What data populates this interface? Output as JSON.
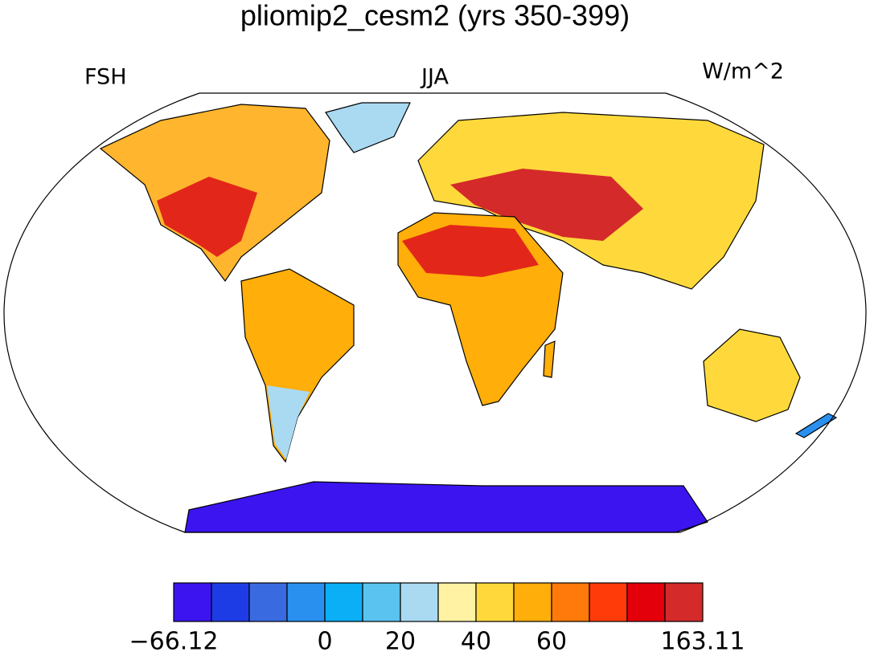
{
  "header": {
    "title": "pliomip2_cesm2 (yrs 350-399)",
    "left": "FSH",
    "center": "JJA",
    "right": "W/m^2"
  },
  "colorbar": {
    "colors": [
      "#3c14f0",
      "#1e3ce6",
      "#3a6ae0",
      "#2a90f0",
      "#0aaff5",
      "#5ac3f0",
      "#a9daf2",
      "#fff3a3",
      "#ffd93b",
      "#ffae0a",
      "#ff7a0a",
      "#ff3b0a",
      "#e3000a",
      "#d42a2a"
    ],
    "labels": [
      {
        "value": -66.12,
        "label": "−66.12"
      },
      0,
      20,
      40,
      60,
      163.11
    ]
  }
}
